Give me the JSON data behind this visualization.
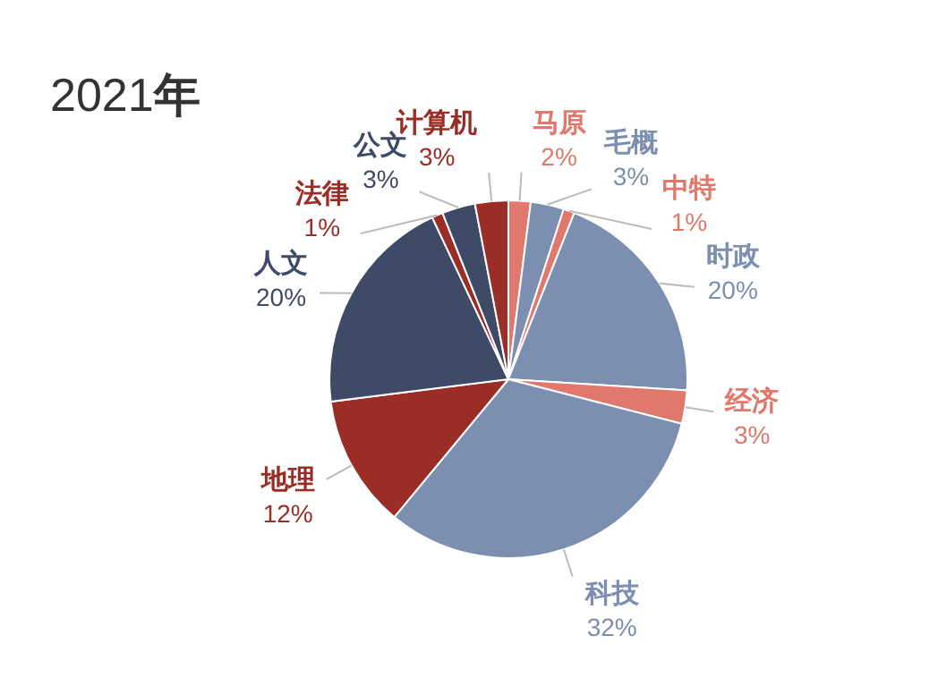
{
  "chart_data": {
    "type": "pie",
    "title": "2021年",
    "categories": [
      "马原",
      "毛概",
      "中特",
      "时政",
      "经济",
      "科技",
      "地理",
      "人文",
      "法律",
      "公文",
      "计算机"
    ],
    "values": [
      2,
      3,
      1,
      20,
      3,
      32,
      12,
      20,
      1,
      3,
      3
    ],
    "colors": [
      "#e0786b",
      "#7c8fb0",
      "#e0786b",
      "#7c8fb0",
      "#e0786b",
      "#7c8fb0",
      "#9a2e26",
      "#3f4a66",
      "#9a2e26",
      "#3f4a66",
      "#9a2e26"
    ],
    "value_labels": [
      "2%",
      "3%",
      "1%",
      "20%",
      "3%",
      "32%",
      "12%",
      "20%",
      "1%",
      "3%",
      "3%"
    ]
  }
}
